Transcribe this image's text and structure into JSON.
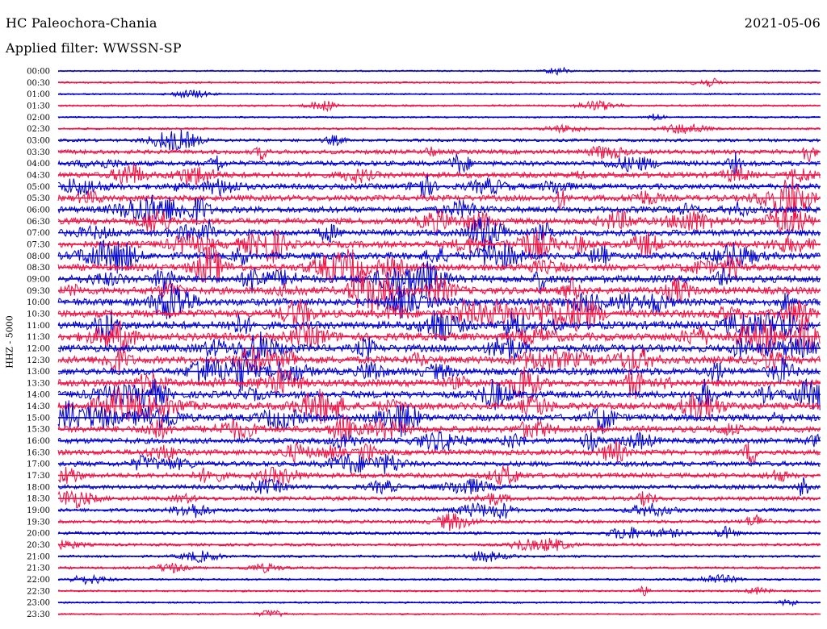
{
  "header": {
    "station": "HC Paleochora-Chania",
    "date": "2021-05-06",
    "filter": "Applied filter: WWSSN-SP"
  },
  "chart_data": {
    "type": "line",
    "title": "HC Paleochora-Chania",
    "ylabel": "HHZ - 5000",
    "row_labels": [
      "00:00",
      "00:30",
      "01:00",
      "01:30",
      "02:00",
      "02:30",
      "03:00",
      "03:30",
      "04:00",
      "04:30",
      "05:00",
      "05:30",
      "06:00",
      "06:30",
      "07:00",
      "07:30",
      "08:00",
      "08:30",
      "09:00",
      "09:30",
      "10:00",
      "10:30",
      "11:00",
      "11:30",
      "12:00",
      "12:30",
      "13:00",
      "13:30",
      "14:00",
      "14:30",
      "15:00",
      "15:30",
      "16:00",
      "16:30",
      "17:00",
      "17:30",
      "18:00",
      "18:30",
      "19:00",
      "19:30",
      "20:00",
      "20:30",
      "21:00",
      "21:30",
      "22:00",
      "22:30",
      "23:00",
      "23:30"
    ],
    "row_colors": [
      "#0000cc",
      "#ee1144"
    ],
    "activity": [
      0.05,
      0.07,
      0.05,
      0.08,
      0.06,
      0.1,
      0.18,
      0.28,
      0.35,
      0.4,
      0.4,
      0.42,
      0.45,
      0.45,
      0.48,
      0.5,
      0.5,
      0.5,
      0.55,
      0.55,
      0.55,
      0.58,
      0.6,
      0.58,
      0.55,
      0.55,
      0.55,
      0.55,
      0.52,
      0.5,
      0.5,
      0.48,
      0.4,
      0.38,
      0.35,
      0.33,
      0.28,
      0.26,
      0.22,
      0.2,
      0.17,
      0.15,
      0.12,
      0.12,
      0.09,
      0.08,
      0.07,
      0.05
    ],
    "grid": false
  }
}
